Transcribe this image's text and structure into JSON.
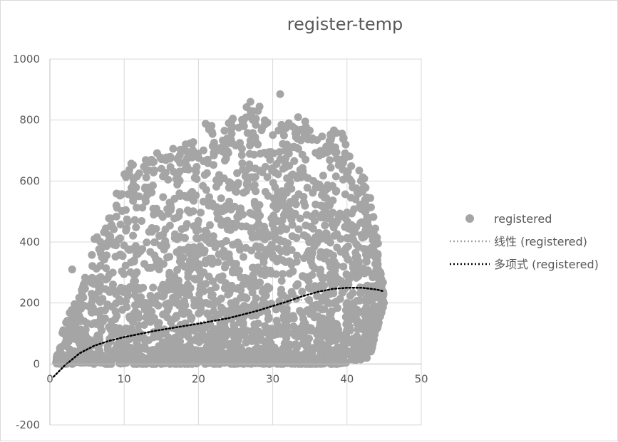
{
  "chart_data": {
    "type": "scatter",
    "title": "register-temp",
    "xlabel": "",
    "ylabel": "",
    "xlim": [
      0,
      50
    ],
    "ylim": [
      -200,
      1000
    ],
    "x_ticks": [
      0,
      10,
      20,
      30,
      40,
      50
    ],
    "y_ticks": [
      -200,
      0,
      200,
      400,
      600,
      800,
      1000
    ],
    "x_tick_labels": [
      "0",
      "10",
      "20",
      "30",
      "40",
      "50"
    ],
    "y_tick_labels": [
      "-200",
      "0",
      "200",
      "400",
      "600",
      "800",
      "1000"
    ],
    "grid": true,
    "legend_position": "right",
    "colors": {
      "points": "#a5a5a5",
      "linear_trend": "#a5a5a5",
      "poly_trend": "#000000",
      "grid": "#d9d9d9",
      "text": "#595959"
    },
    "series": [
      {
        "name": "registered",
        "kind": "scatter",
        "envelope": {
          "x": [
            0.8,
            2,
            4,
            6,
            8,
            10,
            12,
            14,
            16,
            18,
            20,
            22,
            24,
            26,
            28,
            30,
            31,
            33,
            35,
            37,
            39,
            41,
            43,
            45
          ],
          "y_max": [
            10,
            150,
            220,
            410,
            480,
            650,
            670,
            700,
            700,
            720,
            780,
            800,
            810,
            840,
            860,
            760,
            885,
            830,
            790,
            770,
            770,
            690,
            580,
            270
          ],
          "y_min": [
            0,
            0,
            0,
            0,
            0,
            0,
            0,
            0,
            0,
            0,
            0,
            0,
            0,
            0,
            0,
            0,
            0,
            0,
            0,
            0,
            0,
            10,
            20,
            200
          ]
        },
        "outliers": [
          {
            "x": 3,
            "y": 310
          },
          {
            "x": 7,
            "y": 350
          },
          {
            "x": 6,
            "y": 410
          },
          {
            "x": 31,
            "y": 885
          },
          {
            "x": 27,
            "y": 860
          },
          {
            "x": 40,
            "y": 35
          },
          {
            "x": 38,
            "y": 40
          },
          {
            "x": 44,
            "y": 120
          }
        ]
      },
      {
        "name": "线性 (registered)",
        "kind": "linear_trend",
        "x": [
          0.5,
          45
        ],
        "y": [
          30,
          270
        ]
      },
      {
        "name": "多项式 (registered)",
        "kind": "polynomial_trend",
        "x": [
          0.5,
          2,
          4,
          6,
          8,
          10,
          12,
          14,
          16,
          18,
          20,
          22,
          24,
          26,
          28,
          30,
          32,
          34,
          36,
          38,
          40,
          42,
          44,
          45
        ],
        "y": [
          -42,
          -5,
          35,
          60,
          76,
          88,
          98,
          108,
          116,
          124,
          132,
          141,
          150,
          162,
          175,
          190,
          205,
          222,
          236,
          246,
          250,
          250,
          244,
          238
        ]
      }
    ]
  }
}
